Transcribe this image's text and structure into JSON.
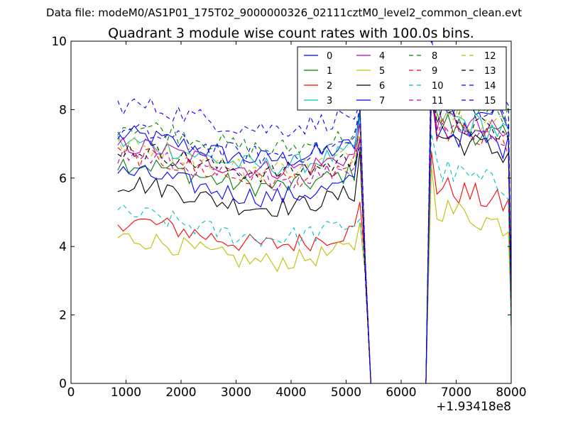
{
  "header": {
    "data_file_label": "Data file: modeM0/AS1P01_175T02_9000000326_02111cztM0_level2_common_clean.evt"
  },
  "chart_data": {
    "type": "line",
    "title": "Quadrant 3 module wise count rates with 100.0s bins.",
    "xlabel": "",
    "ylabel": "",
    "xlim": [
      0,
      8000
    ],
    "ylim": [
      0,
      10
    ],
    "x_ticks": [
      0,
      1000,
      2000,
      3000,
      4000,
      5000,
      6000,
      7000,
      8000
    ],
    "x_tick_labels": [
      "0",
      "1000",
      "2000",
      "3000",
      "4000",
      "5000",
      "6000",
      "7000",
      "8000"
    ],
    "y_ticks": [
      0,
      2,
      4,
      6,
      8,
      10
    ],
    "y_tick_labels": [
      "0",
      "2",
      "4",
      "6",
      "8",
      "10"
    ],
    "x_offset_label": "+1.93418e8",
    "legend_position": "upper-right",
    "legend_columns": 4,
    "bin_width": 100,
    "segments": [
      [
        850,
        5250
      ],
      [
        6550,
        7950
      ]
    ],
    "gap": [
      5450,
      6450
    ],
    "series": [
      {
        "name": "0",
        "color": "#0000ff",
        "style": "solid",
        "level1": 6.9,
        "level2": 7.8,
        "spike": 8.0
      },
      {
        "name": "1",
        "color": "#008000",
        "style": "solid",
        "level1": 6.1,
        "level2": 7.1,
        "spike": 8.0
      },
      {
        "name": "2",
        "color": "#ff0000",
        "style": "solid",
        "level1": 4.4,
        "level2": 5.2,
        "spike": 5.3
      },
      {
        "name": "3",
        "color": "#00bfbf",
        "style": "solid",
        "level1": 6.7,
        "level2": 7.3,
        "spike": 7.8
      },
      {
        "name": "4",
        "color": "#bf00bf",
        "style": "solid",
        "level1": 6.6,
        "level2": 7.2,
        "spike": 7.6
      },
      {
        "name": "5",
        "color": "#bfbf00",
        "style": "solid",
        "level1": 3.9,
        "level2": 4.6,
        "spike": 4.7
      },
      {
        "name": "6",
        "color": "#000000",
        "style": "solid",
        "level1": 5.5,
        "level2": 6.7,
        "spike": 6.8
      },
      {
        "name": "7",
        "color": "#0000ff",
        "style": "solid",
        "level1": 5.8,
        "level2": 6.9,
        "spike": 7.2
      },
      {
        "name": "8",
        "color": "#008000",
        "style": "dashed",
        "level1": 7.2,
        "level2": 7.8,
        "spike": 7.9
      },
      {
        "name": "9",
        "color": "#ff0000",
        "style": "dashed",
        "level1": 6.3,
        "level2": 6.9,
        "spike": 7.1
      },
      {
        "name": "10",
        "color": "#00bfbf",
        "style": "dashed",
        "level1": 4.6,
        "level2": 5.7,
        "spike": 4.8
      },
      {
        "name": "11",
        "color": "#bf00bf",
        "style": "dashed",
        "level1": 6.3,
        "level2": 7.1,
        "spike": 7.2
      },
      {
        "name": "12",
        "color": "#bfbf00",
        "style": "dashed",
        "level1": 6.6,
        "level2": 7.5,
        "spike": 7.4
      },
      {
        "name": "13",
        "color": "#000000",
        "style": "dashed",
        "level1": 6.5,
        "level2": 7.2,
        "spike": 6.9
      },
      {
        "name": "14",
        "color": "#0000ff",
        "style": "dashed",
        "level1": 7.8,
        "level2": 8.3,
        "spike": 8.2
      },
      {
        "name": "15",
        "color": "#0000ff",
        "style": "dashed",
        "level1": 7.0,
        "level2": 7.9,
        "spike": 8.1
      }
    ]
  }
}
